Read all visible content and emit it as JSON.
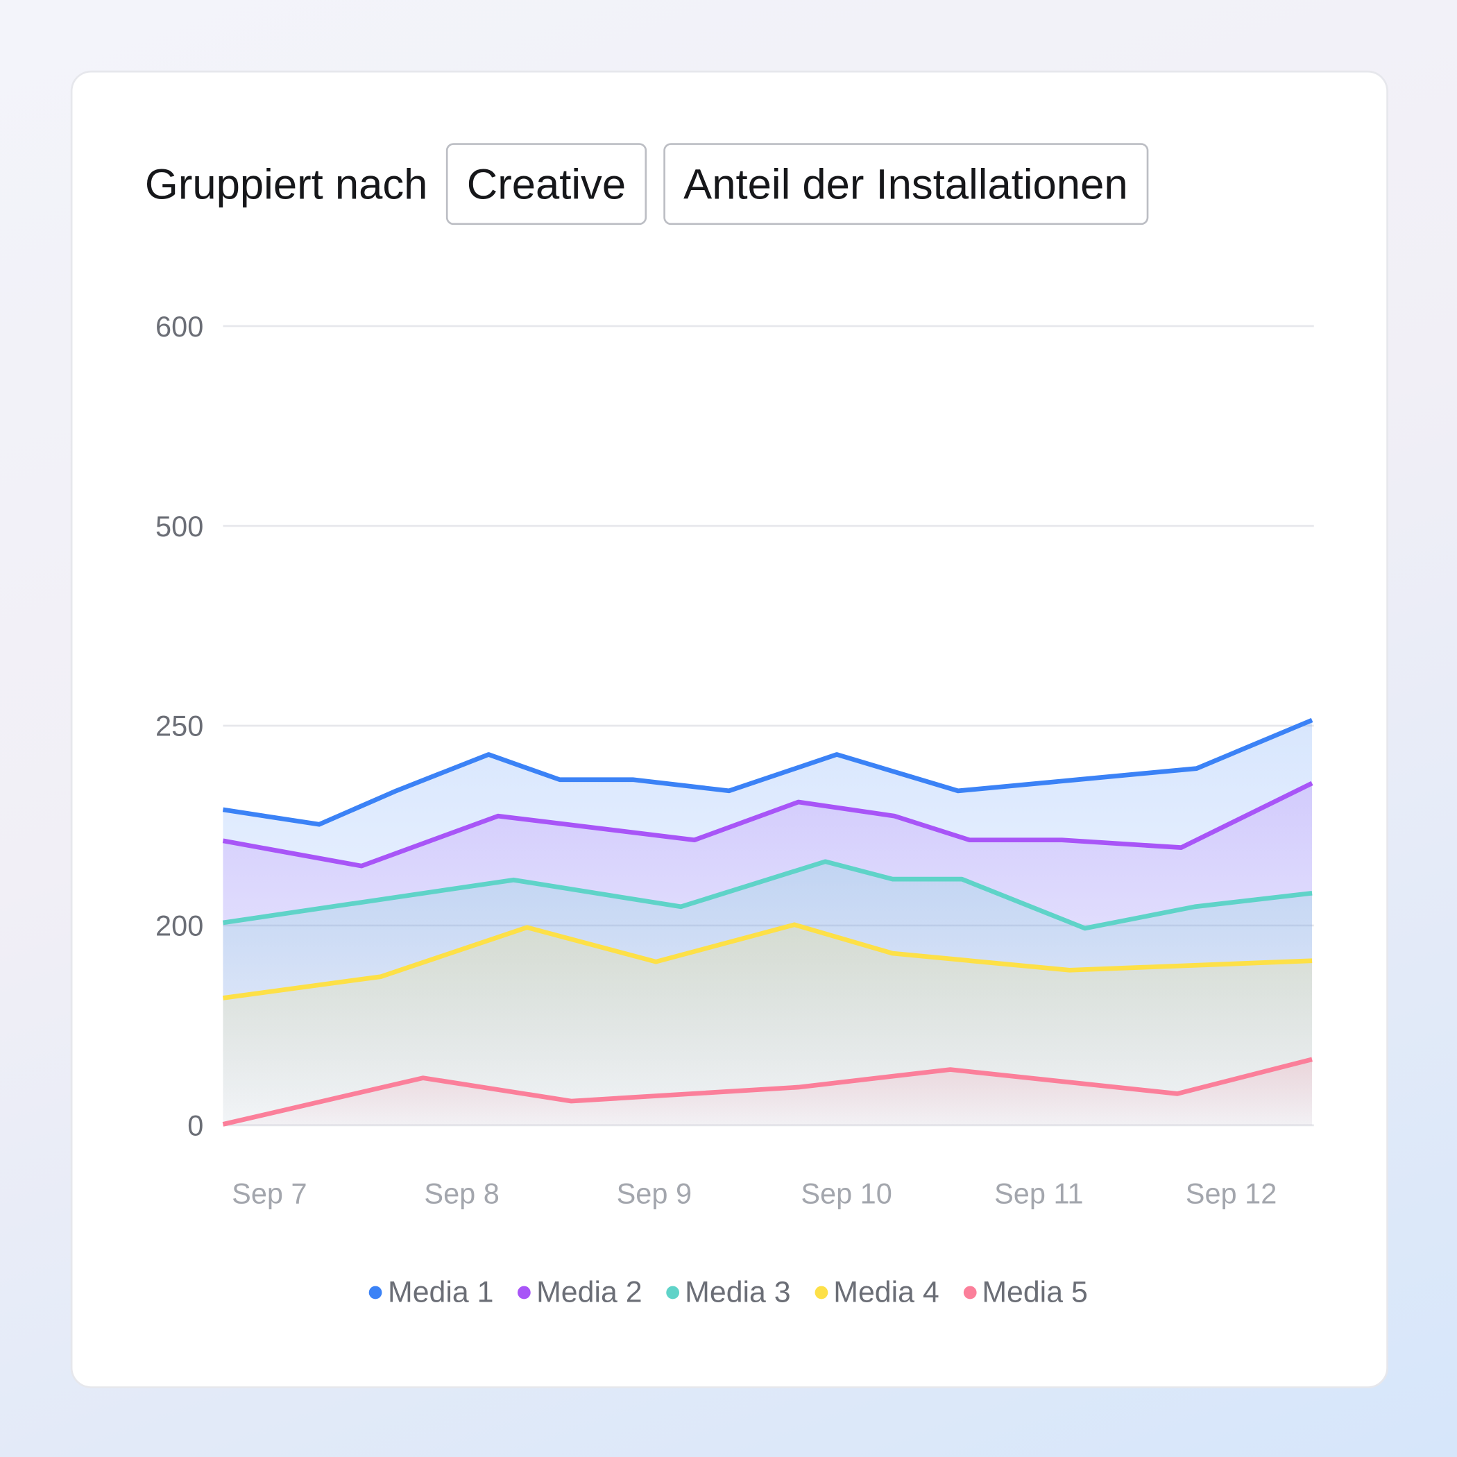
{
  "header": {
    "label": "Gruppiert nach",
    "group_by": "Creative",
    "metric": "Anteil der Installationen"
  },
  "chart_data": {
    "type": "area",
    "title": "",
    "xlabel": "",
    "ylabel": "",
    "y_ticks": [
      0,
      200,
      250,
      500,
      600
    ],
    "x_ticks": [
      {
        "day": 7,
        "label": "Sep 7"
      },
      {
        "day": 8,
        "label": "Sep 8"
      },
      {
        "day": 9,
        "label": "Sep 9"
      },
      {
        "day": 10,
        "label": "Sep 10"
      },
      {
        "day": 11,
        "label": "Sep 11"
      },
      {
        "day": 12,
        "label": "Sep 12"
      }
    ],
    "xlim": [
      6.76,
      12.42
    ],
    "grid": true,
    "legend_position": "bottom",
    "series": [
      {
        "name": "Media 1",
        "color": "#3b82f6",
        "x": [
          6.76,
          7.26,
          7.66,
          8.14,
          8.51,
          8.89,
          9.39,
          9.95,
          10.58,
          11.2,
          11.82,
          12.42
        ],
        "y": [
          229,
          225.3,
          233.7,
          242.8,
          236.5,
          236.5,
          233.7,
          242.8,
          233.7,
          236.5,
          239.3,
          257
        ]
      },
      {
        "name": "Media 2",
        "color": "#a855f7",
        "x": [
          6.76,
          7.48,
          8.19,
          9.21,
          9.75,
          10.25,
          10.64,
          11.12,
          11.74,
          12.42
        ],
        "y": [
          221.2,
          214.9,
          227.4,
          221.4,
          230.9,
          227.4,
          221.4,
          221.4,
          219.5,
          235.6
        ]
      },
      {
        "name": "Media 3",
        "color": "#5fd3c8",
        "x": [
          6.76,
          8.27,
          9.14,
          9.89,
          10.24,
          10.6,
          11.24,
          11.81,
          12.42
        ],
        "y": [
          200.7,
          211.4,
          204.7,
          216,
          211.6,
          211.6,
          197.2,
          204.7,
          208.1
        ]
      },
      {
        "name": "Media 4",
        "color": "#fde047",
        "x": [
          6.76,
          7.58,
          8.34,
          9.01,
          9.73,
          10.24,
          11.16,
          12.42
        ],
        "y": [
          127.4,
          148.8,
          198.1,
          163.7,
          200.2,
          172.1,
          155.3,
          164.7
        ]
      },
      {
        "name": "Media 5",
        "color": "#fb7f9a",
        "x": [
          6.76,
          7.8,
          8.57,
          9.75,
          10.54,
          11.72,
          12.42
        ],
        "y": [
          1,
          47.4,
          24.2,
          38.1,
          55.8,
          31.6,
          66
        ]
      }
    ]
  }
}
